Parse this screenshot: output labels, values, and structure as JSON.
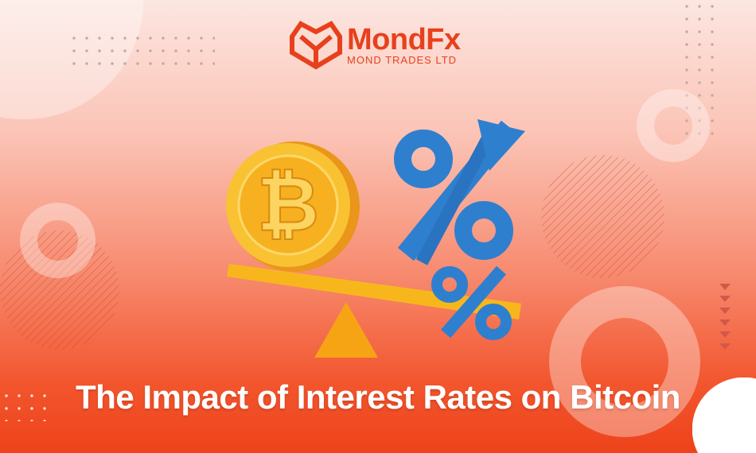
{
  "logo": {
    "brand": "MondFx",
    "tagline": "MOND TRADES LTD",
    "color": "#e8401c"
  },
  "headline": "The Impact of Interest Rates on Bitcoin",
  "illustration": {
    "coin": "bitcoin-coin",
    "symbol": "%",
    "arrow": "up-arrow",
    "scale": "seesaw"
  },
  "colors": {
    "background_top": "#fce6e1",
    "background_bottom": "#ee431b",
    "coin": "#f6b319",
    "percent": "#2f7fcf"
  }
}
